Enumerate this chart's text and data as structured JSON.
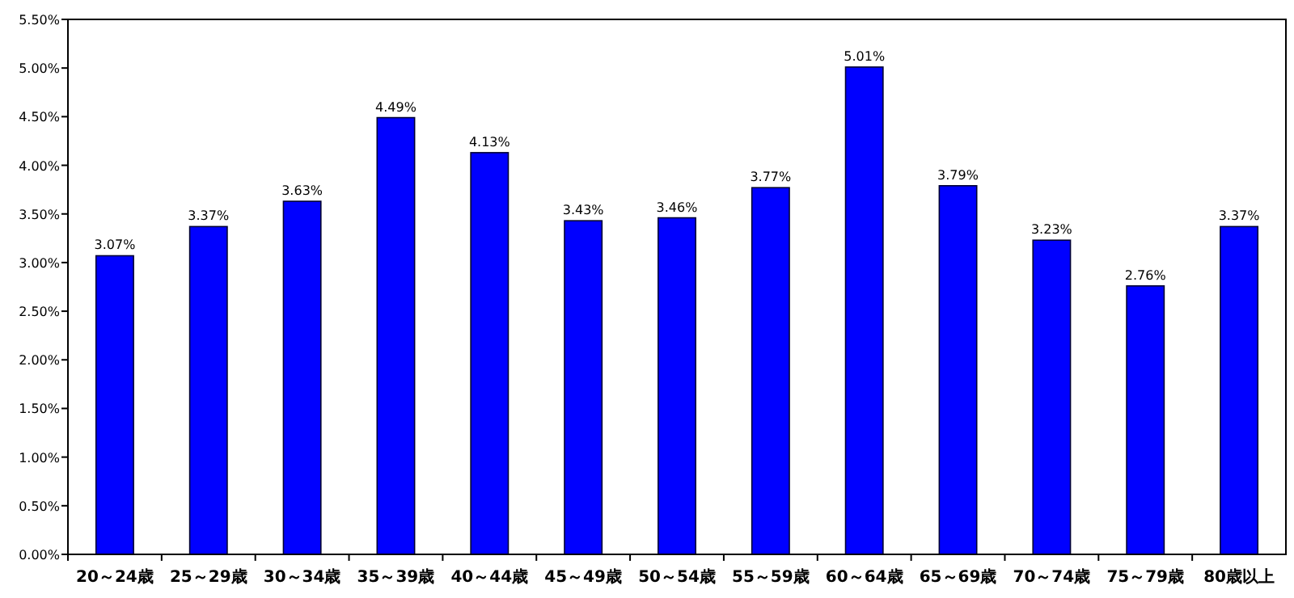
{
  "chart_data": {
    "type": "bar",
    "categories": [
      "20～24歳",
      "25～29歳",
      "30～34歳",
      "35～39歳",
      "40～44歳",
      "45～49歳",
      "50～54歳",
      "55～59歳",
      "60～64歳",
      "65～69歳",
      "70～74歳",
      "75～79歳",
      "80歳以上"
    ],
    "values": [
      3.07,
      3.37,
      3.63,
      4.49,
      4.13,
      3.43,
      3.46,
      3.77,
      5.01,
      3.79,
      3.23,
      2.76,
      3.37
    ],
    "value_labels": [
      "3.07%",
      "3.37%",
      "3.63%",
      "4.49%",
      "4.13%",
      "3.43%",
      "3.46%",
      "3.77%",
      "5.01%",
      "3.79%",
      "3.23%",
      "2.76%",
      "3.37%"
    ],
    "color": "#0000ff",
    "ylim": [
      0,
      5.5
    ],
    "yticks": [
      {
        "value": 0,
        "label": "0.00%"
      },
      {
        "value": 0.5,
        "label": "0.50%"
      },
      {
        "value": 1,
        "label": "1.00%"
      },
      {
        "value": 1.5,
        "label": "1.50%"
      },
      {
        "value": 2,
        "label": "2.00%"
      },
      {
        "value": 2.5,
        "label": "2.50%"
      },
      {
        "value": 3,
        "label": "3.00%"
      },
      {
        "value": 3.5,
        "label": "3.50%"
      },
      {
        "value": 4,
        "label": "4.00%"
      },
      {
        "value": 4.5,
        "label": "4.50%"
      },
      {
        "value": 5,
        "label": "5.00%"
      },
      {
        "value": 5.5,
        "label": "5.50%"
      }
    ]
  }
}
